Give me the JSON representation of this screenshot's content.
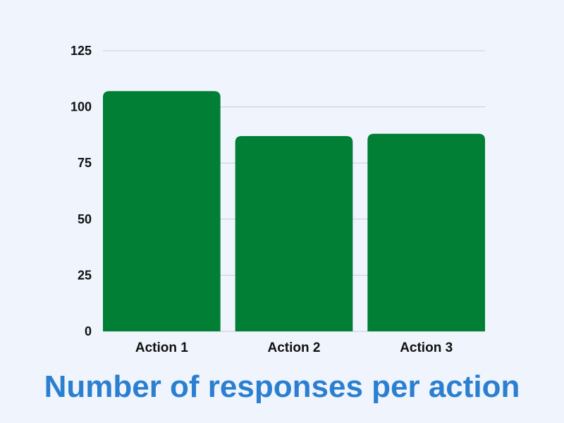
{
  "chart_data": {
    "type": "bar",
    "title": "Number of responses per action",
    "xlabel": "",
    "ylabel": "",
    "categories": [
      "Action 1",
      "Action 2",
      "Action 3"
    ],
    "values": [
      107,
      87,
      88
    ],
    "ylim": [
      0,
      125
    ],
    "yticks": [
      0,
      25,
      50,
      75,
      100,
      125
    ],
    "grid": true,
    "legend": "none"
  },
  "colors": {
    "bar": "#007f35",
    "title": "#2b7fd1",
    "grid": "#c8ccd6",
    "background": "#eff4fd"
  }
}
